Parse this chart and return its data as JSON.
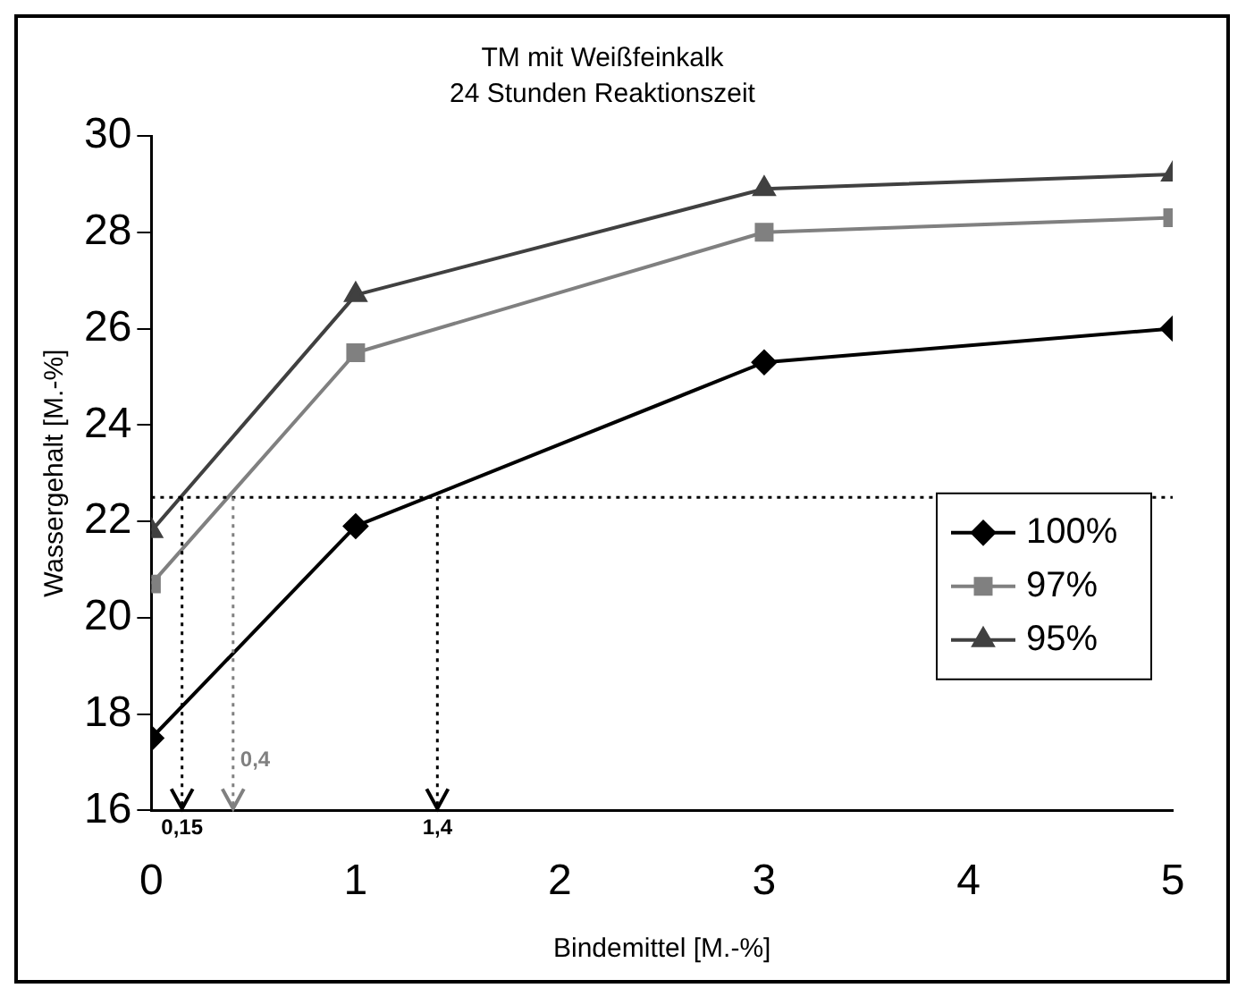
{
  "chart_data": {
    "type": "line",
    "title": "TM mit Weißfeinkalk",
    "subtitle": "24 Stunden Reaktionszeit",
    "xlabel": "Bindemittel [M.-%]",
    "ylabel": "Wassergehalt [M.-%]",
    "x": [
      0,
      1,
      3,
      5
    ],
    "series": [
      {
        "name": "100%",
        "color": "#000000",
        "marker": "diamond",
        "values": [
          17.5,
          21.9,
          25.3,
          26.0
        ]
      },
      {
        "name": "97%",
        "color": "#808080",
        "marker": "square",
        "values": [
          20.7,
          25.5,
          28.0,
          28.3
        ]
      },
      {
        "name": "95%",
        "color": "#404040",
        "marker": "triangle",
        "values": [
          21.8,
          26.7,
          28.9,
          29.2
        ]
      }
    ],
    "xlim": [
      0,
      5
    ],
    "xticks": [
      0,
      1,
      2,
      3,
      4,
      5
    ],
    "ylim": [
      16,
      30
    ],
    "yticks": [
      16,
      18,
      20,
      22,
      24,
      26,
      28,
      30
    ],
    "ref_lines": [
      {
        "axis": "y",
        "value": 22.5,
        "color": "#000000",
        "line_style": "dotted"
      },
      {
        "axis": "x",
        "value": 0.15,
        "label": "0,15",
        "color": "#000000",
        "line_style": "dotted"
      },
      {
        "axis": "x",
        "value": 0.4,
        "label": "0,4",
        "color": "#808080",
        "line_style": "dotted"
      },
      {
        "axis": "x",
        "value": 1.4,
        "label": "1,4",
        "color": "#000000",
        "line_style": "dotted"
      }
    ],
    "grid": false,
    "legend": "right"
  }
}
